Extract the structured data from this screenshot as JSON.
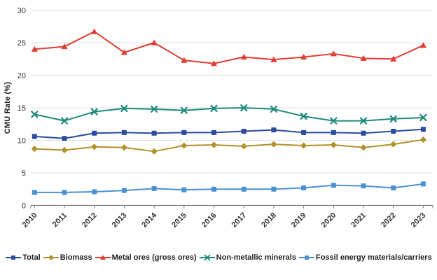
{
  "chart_data": {
    "type": "line",
    "title": "",
    "xlabel": "",
    "ylabel": "CMU Rate (%)",
    "ylim": [
      0,
      30
    ],
    "ytick_step": 5,
    "grid": true,
    "legend_position": "bottom",
    "categories": [
      "2010",
      "2011",
      "2012",
      "2013",
      "2014",
      "2015",
      "2016",
      "2017",
      "2018",
      "2019",
      "2020",
      "2021",
      "2022",
      "2023"
    ],
    "series": [
      {
        "name": "Total",
        "color": "#2a4b9e",
        "marker": "square",
        "values": [
          10.6,
          10.3,
          11.1,
          11.2,
          11.1,
          11.2,
          11.2,
          11.4,
          11.6,
          11.2,
          11.2,
          11.1,
          11.4,
          11.7
        ]
      },
      {
        "name": "Biomass",
        "color": "#b2912a",
        "marker": "diamond",
        "values": [
          8.7,
          8.5,
          9.0,
          8.9,
          8.3,
          9.2,
          9.3,
          9.1,
          9.4,
          9.2,
          9.3,
          8.9,
          9.4,
          10.1
        ]
      },
      {
        "name": "Metal ores (gross ores)",
        "color": "#e03c31",
        "marker": "triangle",
        "values": [
          24.0,
          24.4,
          26.7,
          23.5,
          25.0,
          22.3,
          21.8,
          22.8,
          22.4,
          22.8,
          23.3,
          22.6,
          22.5,
          24.6
        ]
      },
      {
        "name": "Non-metallic minerals",
        "color": "#1d8a7c",
        "marker": "x",
        "values": [
          14.0,
          13.0,
          14.4,
          14.9,
          14.8,
          14.6,
          14.9,
          15.0,
          14.8,
          13.7,
          13.0,
          13.0,
          13.3,
          13.5
        ]
      },
      {
        "name": "Fossil energy materials/carriers",
        "color": "#4a90d5",
        "marker": "square",
        "values": [
          2.0,
          2.0,
          2.1,
          2.3,
          2.6,
          2.4,
          2.5,
          2.5,
          2.5,
          2.7,
          3.1,
          3.0,
          2.7,
          3.3
        ]
      }
    ],
    "axis_colors": {
      "grid": "#e0e0e0",
      "axis_line": "#7f7f7f",
      "tick_label": "#333333"
    }
  }
}
